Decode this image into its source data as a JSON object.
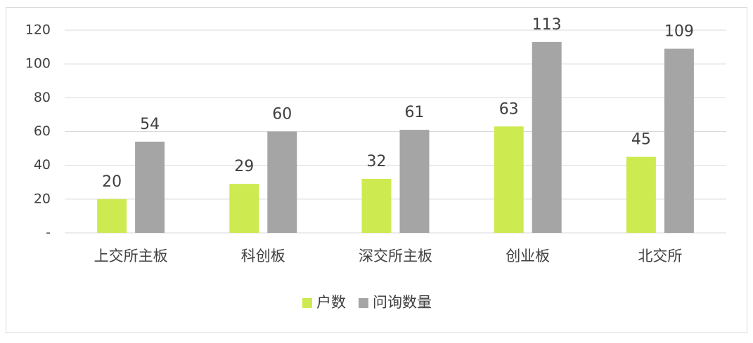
{
  "chart_data": {
    "type": "bar",
    "categories": [
      "上交所主板",
      "科创板",
      "深交所主板",
      "创业板",
      "北交所"
    ],
    "series": [
      {
        "name": "户数",
        "color": "#cdea50",
        "values": [
          20,
          29,
          32,
          63,
          45
        ]
      },
      {
        "name": "问询数量",
        "color": "#a5a5a5",
        "values": [
          54,
          60,
          61,
          113,
          109
        ]
      }
    ],
    "ylim": [
      0,
      120
    ],
    "yticks": [
      {
        "value": 0,
        "label": "-"
      },
      20,
      40,
      60,
      80,
      100,
      120
    ],
    "grid": true,
    "legend": "bottom"
  }
}
